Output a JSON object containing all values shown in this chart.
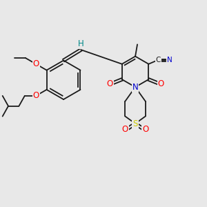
{
  "bg_color": "#e8e8e8",
  "bond_color": "#1a1a1a",
  "bond_width": 1.3,
  "atom_colors": {
    "O": "#ff0000",
    "N": "#0000cc",
    "S": "#cccc00",
    "H_label": "#008888",
    "CN_C": "#1a1a1a",
    "CN_N": "#0000cc"
  },
  "font_size": 8.5,
  "small_font_size": 7.5
}
